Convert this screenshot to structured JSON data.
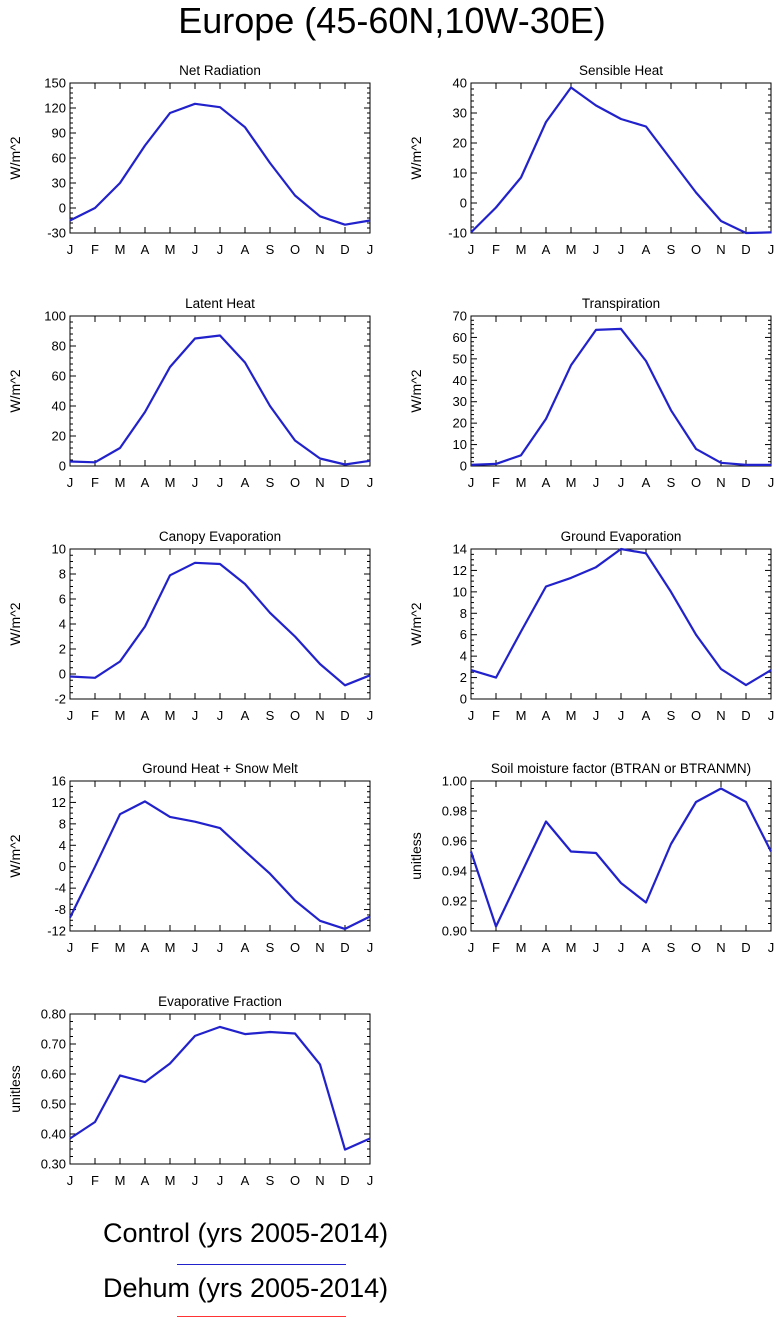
{
  "figure_title": "Europe (45-60N,10W-30E)",
  "colors": {
    "control": "#2222cc",
    "dehum": "#ff3333",
    "axes": "#000000"
  },
  "legend": {
    "items": [
      {
        "label": "Control (yrs 2005-2014)",
        "color": "#2222cc"
      },
      {
        "label": "Dehum (yrs 2005-2014)",
        "color": "#ff3333"
      }
    ]
  },
  "chart_data": [
    {
      "type": "line",
      "title": "Net Radiation",
      "ylabel": "W/m^2",
      "categories": [
        "J",
        "F",
        "M",
        "A",
        "M",
        "J",
        "J",
        "A",
        "S",
        "O",
        "N",
        "D",
        "J"
      ],
      "ylim": [
        -30,
        150
      ],
      "yticks": [
        -30,
        0,
        30,
        60,
        90,
        120,
        150
      ],
      "yticklabels": [
        "-30",
        "0",
        "30",
        "60",
        "90",
        "120",
        "150"
      ],
      "yminor": 5,
      "series": [
        {
          "name": "Control (yrs 2005-2014)",
          "color": "#2222cc",
          "values": [
            -15,
            0,
            30,
            75,
            114,
            125,
            121,
            97,
            54,
            15,
            -10,
            -20,
            -15
          ]
        }
      ]
    },
    {
      "type": "line",
      "title": "Sensible Heat",
      "ylabel": "W/m^2",
      "categories": [
        "J",
        "F",
        "M",
        "A",
        "M",
        "J",
        "J",
        "A",
        "S",
        "O",
        "N",
        "D",
        "J"
      ],
      "ylim": [
        -10,
        40
      ],
      "yticks": [
        -10,
        0,
        10,
        20,
        30,
        40
      ],
      "yticklabels": [
        "-10",
        "0",
        "10",
        "20",
        "30",
        "40"
      ],
      "yminor": 5,
      "series": [
        {
          "name": "Control (yrs 2005-2014)",
          "color": "#2222cc",
          "values": [
            -9.8,
            -1.5,
            8.5,
            27,
            38.5,
            32.5,
            28,
            25.5,
            14.5,
            3.5,
            -6,
            -10,
            -9.8
          ]
        }
      ]
    },
    {
      "type": "line",
      "title": "Latent Heat",
      "ylabel": "W/m^2",
      "categories": [
        "J",
        "F",
        "M",
        "A",
        "M",
        "J",
        "J",
        "A",
        "S",
        "O",
        "N",
        "D",
        "J"
      ],
      "ylim": [
        0,
        100
      ],
      "yticks": [
        0,
        20,
        40,
        60,
        80,
        100
      ],
      "yticklabels": [
        "0",
        "20",
        "40",
        "60",
        "80",
        "100"
      ],
      "yminor": 5,
      "series": [
        {
          "name": "Control (yrs 2005-2014)",
          "color": "#2222cc",
          "values": [
            3,
            2.5,
            12,
            36,
            66,
            85,
            87,
            69,
            40,
            17,
            5,
            1,
            3.5
          ]
        }
      ]
    },
    {
      "type": "line",
      "title": "Transpiration",
      "ylabel": "W/m^2",
      "categories": [
        "J",
        "F",
        "M",
        "A",
        "M",
        "J",
        "J",
        "A",
        "S",
        "O",
        "N",
        "D",
        "J"
      ],
      "ylim": [
        0,
        70
      ],
      "yticks": [
        0,
        10,
        20,
        30,
        40,
        50,
        60,
        70
      ],
      "yticklabels": [
        "0",
        "10",
        "20",
        "30",
        "40",
        "50",
        "60",
        "70"
      ],
      "yminor": 5,
      "series": [
        {
          "name": "Control (yrs 2005-2014)",
          "color": "#2222cc",
          "values": [
            0.5,
            1,
            5,
            22,
            47,
            63.5,
            64,
            49,
            26,
            8,
            1.5,
            0.5,
            0.5
          ]
        }
      ]
    },
    {
      "type": "line",
      "title": "Canopy Evaporation",
      "ylabel": "W/m^2",
      "categories": [
        "J",
        "F",
        "M",
        "A",
        "M",
        "J",
        "J",
        "A",
        "S",
        "O",
        "N",
        "D",
        "J"
      ],
      "ylim": [
        -2,
        10
      ],
      "yticks": [
        -2,
        0,
        2,
        4,
        6,
        8,
        10
      ],
      "yticklabels": [
        "-2",
        "0",
        "2",
        "4",
        "6",
        "8",
        "10"
      ],
      "yminor": 4,
      "series": [
        {
          "name": "Control (yrs 2005-2014)",
          "color": "#2222cc",
          "values": [
            -0.2,
            -0.3,
            1,
            3.8,
            7.9,
            8.9,
            8.8,
            7.2,
            4.9,
            3,
            0.8,
            -0.9,
            -0.1
          ]
        }
      ]
    },
    {
      "type": "line",
      "title": "Ground Evaporation",
      "ylabel": "W/m^2",
      "categories": [
        "J",
        "F",
        "M",
        "A",
        "M",
        "J",
        "J",
        "A",
        "S",
        "O",
        "N",
        "D",
        "J"
      ],
      "ylim": [
        0,
        14
      ],
      "yticks": [
        0,
        2,
        4,
        6,
        8,
        10,
        12,
        14
      ],
      "yticklabels": [
        "0",
        "2",
        "4",
        "6",
        "8",
        "10",
        "12",
        "14"
      ],
      "yminor": 4,
      "series": [
        {
          "name": "Control (yrs 2005-2014)",
          "color": "#2222cc",
          "values": [
            2.7,
            2,
            6.3,
            10.5,
            11.3,
            12.3,
            14,
            13.6,
            10,
            6,
            2.8,
            1.3,
            2.7
          ]
        }
      ]
    },
    {
      "type": "line",
      "title": "Ground Heat + Snow Melt",
      "ylabel": "W/m^2",
      "categories": [
        "J",
        "F",
        "M",
        "A",
        "M",
        "J",
        "J",
        "A",
        "S",
        "O",
        "N",
        "D",
        "J"
      ],
      "ylim": [
        -12,
        16
      ],
      "yticks": [
        -12,
        -8,
        -4,
        0,
        4,
        8,
        12,
        16
      ],
      "yticklabels": [
        "-12",
        "-8",
        "-4",
        "0",
        "4",
        "8",
        "12",
        "16"
      ],
      "yminor": 4,
      "series": [
        {
          "name": "Control (yrs 2005-2014)",
          "color": "#2222cc",
          "values": [
            -9.5,
            0,
            9.8,
            12.2,
            9.3,
            8.4,
            7.2,
            2.9,
            -1.3,
            -6.3,
            -10.1,
            -11.6,
            -9.3
          ]
        }
      ]
    },
    {
      "type": "line",
      "title": "Soil moisture factor (BTRAN or BTRANMN)",
      "ylabel": "unitless",
      "categories": [
        "J",
        "F",
        "M",
        "A",
        "M",
        "J",
        "J",
        "A",
        "S",
        "O",
        "N",
        "D",
        "J"
      ],
      "ylim": [
        0.9,
        1.0
      ],
      "yticks": [
        0.9,
        0.92,
        0.94,
        0.96,
        0.98,
        1.0
      ],
      "yticklabels": [
        "0.90",
        "0.92",
        "0.94",
        "0.96",
        "0.98",
        "1.00"
      ],
      "yminor": 4,
      "series": [
        {
          "name": "Control (yrs 2005-2014)",
          "color": "#2222cc",
          "values": [
            0.953,
            0.903,
            0.938,
            0.973,
            0.953,
            0.952,
            0.932,
            0.919,
            0.958,
            0.986,
            0.995,
            0.986,
            0.953
          ]
        }
      ]
    },
    {
      "type": "line",
      "title": "Evaporative Fraction",
      "ylabel": "unitless",
      "categories": [
        "J",
        "F",
        "M",
        "A",
        "M",
        "J",
        "J",
        "A",
        "S",
        "O",
        "N",
        "D",
        "J"
      ],
      "ylim": [
        0.3,
        0.8
      ],
      "yticks": [
        0.3,
        0.4,
        0.5,
        0.6,
        0.7,
        0.8
      ],
      "yticklabels": [
        "0.30",
        "0.40",
        "0.50",
        "0.60",
        "0.70",
        "0.80"
      ],
      "yminor": 4,
      "series": [
        {
          "name": "Control (yrs 2005-2014)",
          "color": "#2222cc",
          "values": [
            0.385,
            0.44,
            0.595,
            0.573,
            0.635,
            0.727,
            0.757,
            0.733,
            0.74,
            0.735,
            0.632,
            0.348,
            0.385
          ]
        }
      ]
    }
  ]
}
